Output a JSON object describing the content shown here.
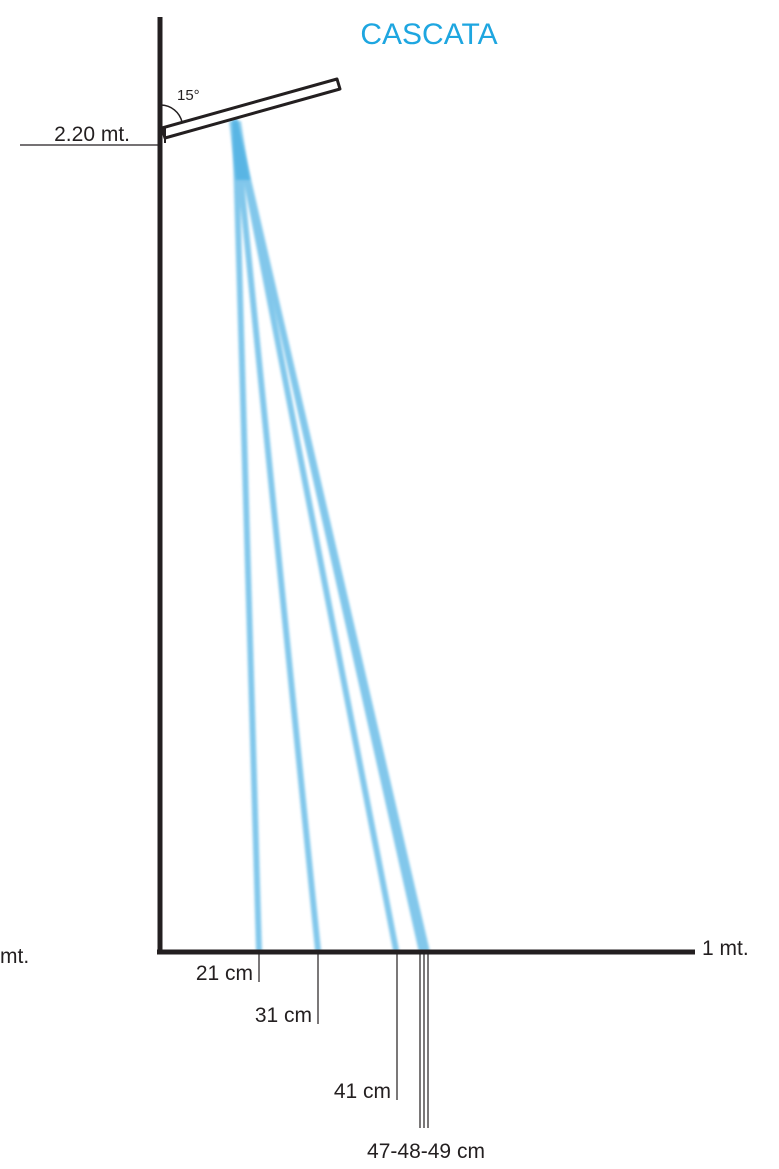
{
  "title": "CASCATA",
  "colors": {
    "title": "#1ea6e0",
    "beam": "#7cc5ea",
    "beam_core": "#39a8e0",
    "structure": "#231f20",
    "fixture_fill": "#ffffff"
  },
  "labels": {
    "angle": "15°",
    "height": "2.20 mt.",
    "left_ground": "mt.",
    "right_ground": "1 mt.",
    "dist_21": "21 cm",
    "dist_31": "31 cm",
    "dist_41": "41 cm",
    "dist_47_49": "47-48-49 cm"
  }
}
